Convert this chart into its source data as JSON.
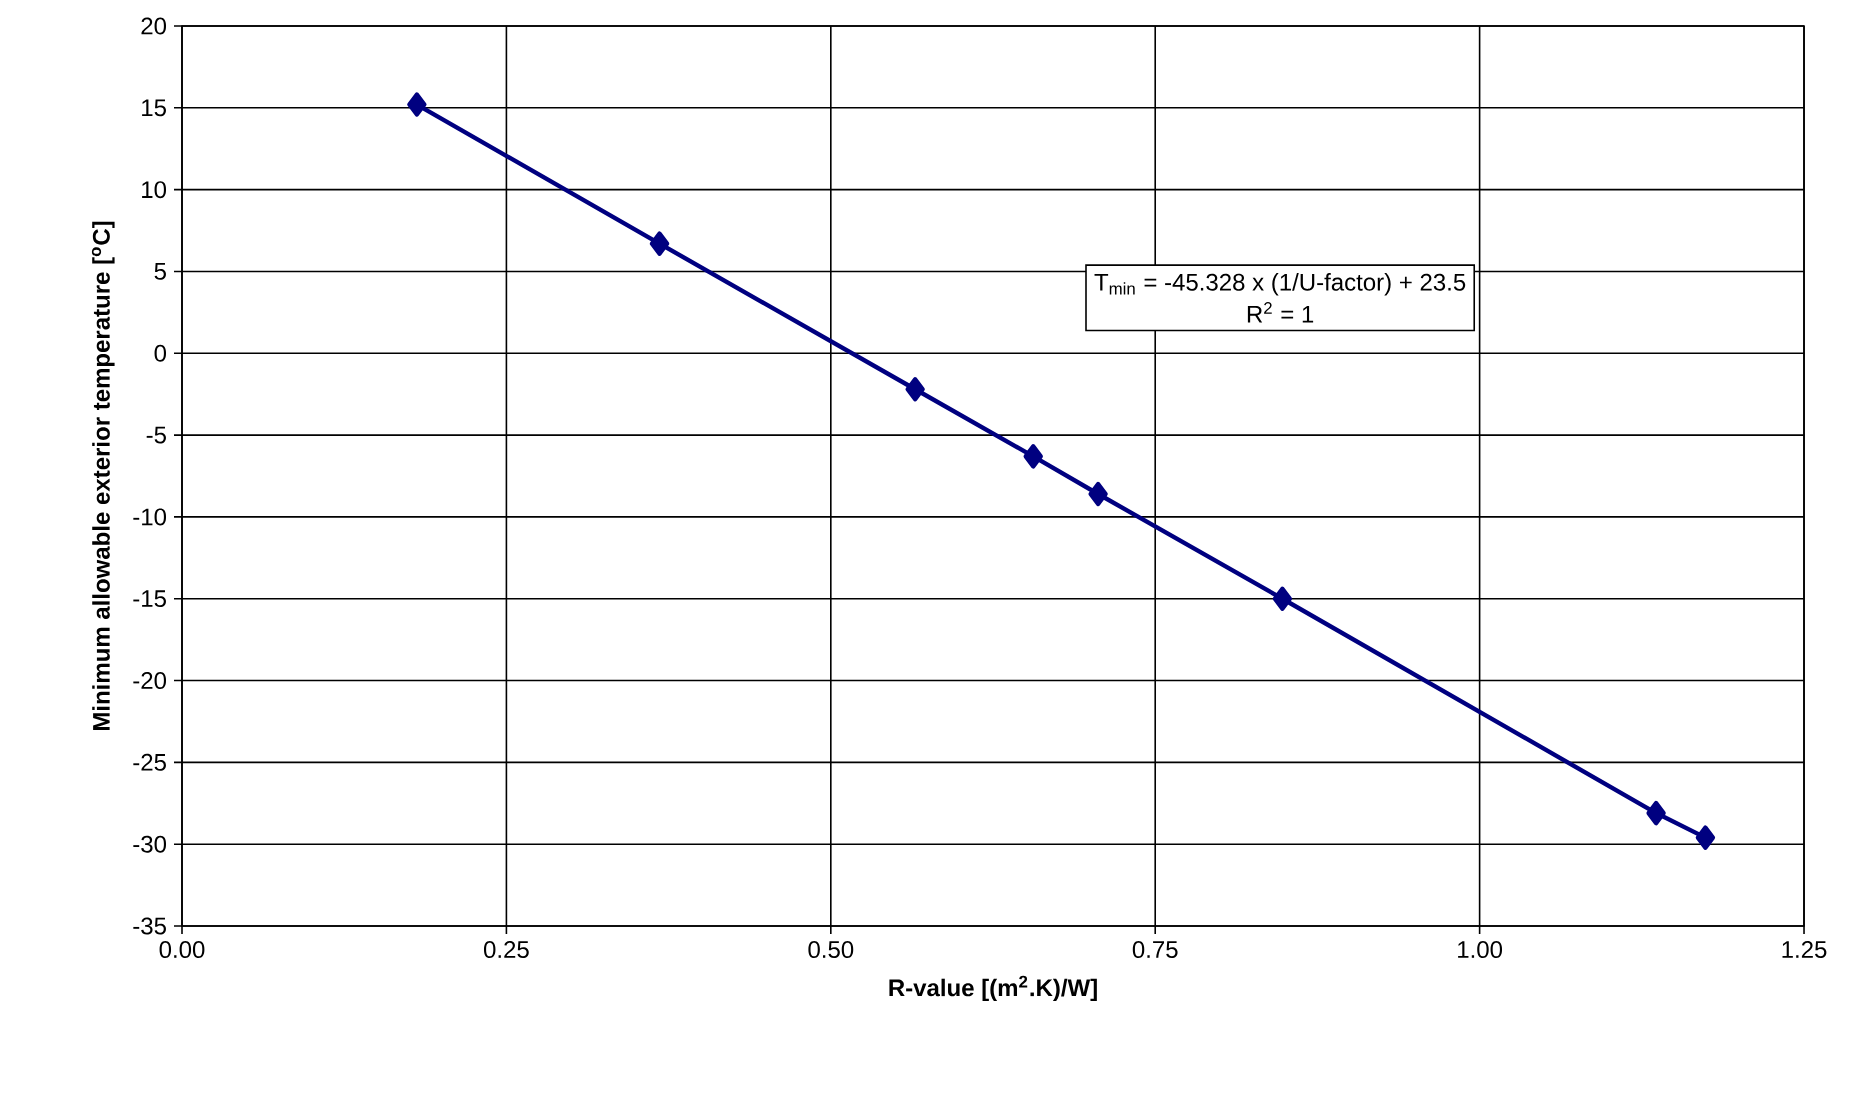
{
  "chart_data": {
    "type": "line",
    "xlabel": "R-value [(m$^{2}$.K)/W]",
    "ylabel": "Minimum allowable exterior temperature [$^{o}$C]",
    "annotations": [
      "T$_{min}$ = -45.328 x (1/U-factor) + 23.5",
      "R$^{2}$ = 1"
    ],
    "series": [
      {
        "color": "#000080",
        "x": [
          0.181,
          0.368,
          0.565,
          0.656,
          0.706,
          0.848,
          1.136,
          1.174
        ],
        "values": [
          15.2,
          6.7,
          -2.2,
          -6.3,
          -8.6,
          -15.0,
          -28.1,
          -29.6
        ]
      }
    ],
    "xlim": [
      0,
      1.25
    ],
    "xticks": [
      {
        "value": 0,
        "label": "0.00"
      },
      {
        "value": 0.25,
        "label": "0.25"
      },
      {
        "value": 0.5,
        "label": "0.50"
      },
      {
        "value": 0.75,
        "label": "0.75"
      },
      {
        "value": 1,
        "label": "1.00"
      },
      {
        "value": 1.25,
        "label": "1.25"
      }
    ],
    "ylim": [
      -35,
      20
    ],
    "yticks": [
      -35,
      -30,
      -25,
      -20,
      -15,
      -10,
      -5,
      0,
      5,
      10,
      15,
      20
    ],
    "grid": true,
    "marker": "diamond",
    "line_style": "solid"
  }
}
